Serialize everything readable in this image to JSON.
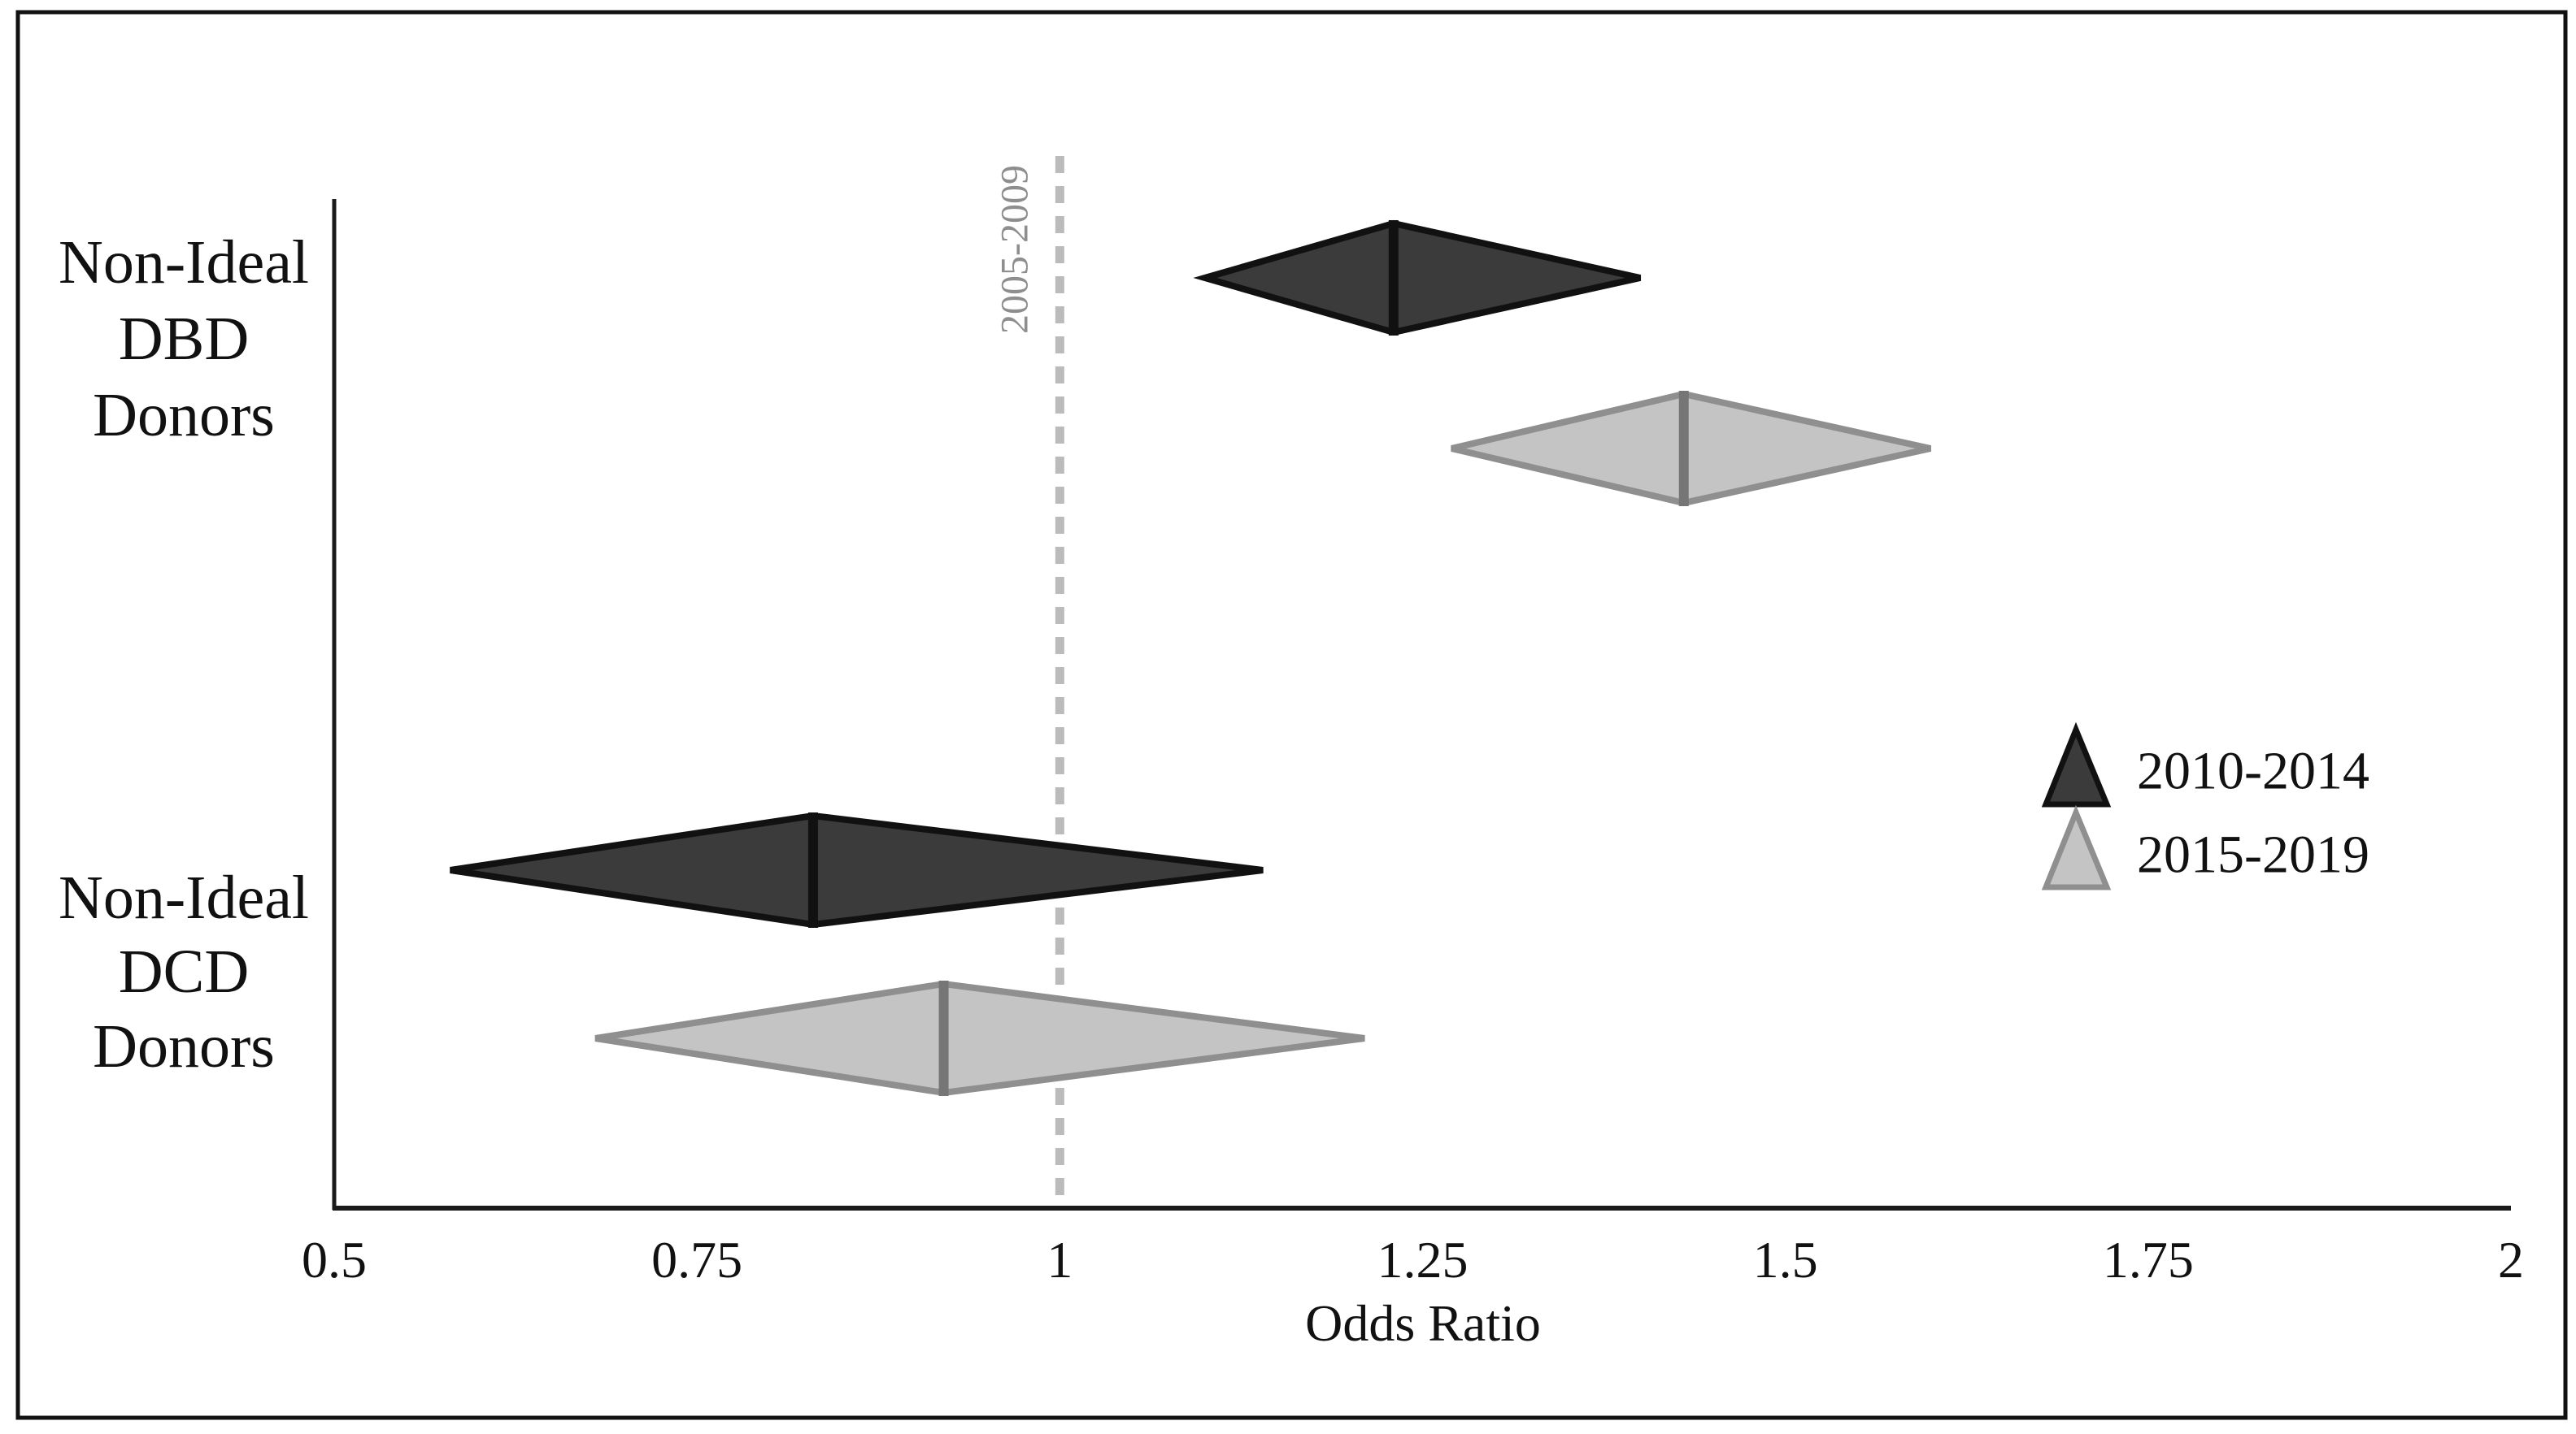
{
  "figure": {
    "background": "#ffffff",
    "frame_color": "#111111"
  },
  "chart_data": {
    "type": "forest-diamond",
    "title": "",
    "xlabel": "Odds Ratio",
    "x_axis": {
      "min": 0.5,
      "max": 2.0,
      "ticks": [
        0.5,
        0.75,
        1,
        1.25,
        1.5,
        1.75,
        2
      ],
      "tick_labels": [
        "0.5",
        "0.75",
        "1",
        "1.25",
        "1.5",
        "1.75",
        "2"
      ],
      "grid": false
    },
    "reference_line": {
      "x": 1.0,
      "label": "2005-2009",
      "style": "dotted",
      "color": "#bbbbbb",
      "label_color": "#8e8e8e"
    },
    "groups": [
      "Non-Ideal DBD Donors",
      "Non-Ideal DCD Donors"
    ],
    "group_labels_lines": [
      [
        "Non-Ideal",
        "DBD",
        "Donors"
      ],
      [
        "Non-Ideal",
        "DCD",
        "Donors"
      ]
    ],
    "legend_position": "right",
    "series": [
      {
        "name": "2010-2014",
        "fill": "#3b3b3b",
        "outline": "#111111",
        "center_line": "#111111",
        "points": [
          {
            "group": "Non-Ideal DBD Donors",
            "or": 1.23,
            "ci_low": 1.1,
            "ci_high": 1.4
          },
          {
            "group": "Non-Ideal DCD Donors",
            "or": 0.83,
            "ci_low": 0.58,
            "ci_high": 1.14
          }
        ]
      },
      {
        "name": "2015-2019",
        "fill": "#c4c4c4",
        "outline": "#8f8f8f",
        "center_line": "#767676",
        "points": [
          {
            "group": "Non-Ideal DBD Donors",
            "or": 1.43,
            "ci_low": 1.27,
            "ci_high": 1.6
          },
          {
            "group": "Non-Ideal DCD Donors",
            "or": 0.92,
            "ci_low": 0.68,
            "ci_high": 1.21
          }
        ]
      }
    ]
  }
}
